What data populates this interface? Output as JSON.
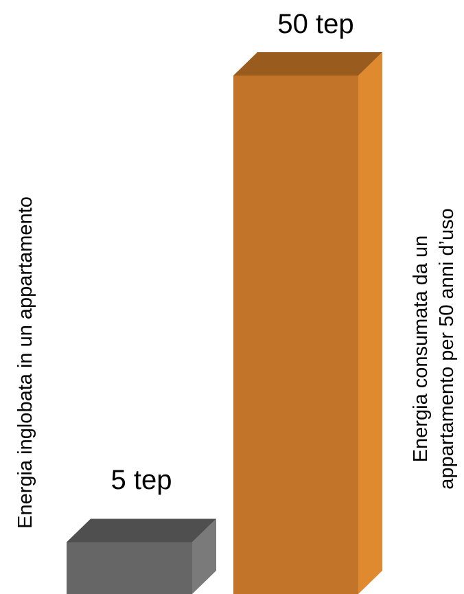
{
  "chart_data": {
    "type": "bar",
    "categories": [
      "Energia inglobata in un appartamento",
      "Energia consumata da un appartamento per 50 anni d’uso"
    ],
    "values": [
      5,
      50
    ],
    "unit": "tep",
    "data_labels": [
      "5 tep",
      "50 tep"
    ],
    "category_label_lines": [
      [
        "Energia inglobata in un appartamento"
      ],
      [
        "Energia consumata da un",
        "appartamento per 50 anni d’uso"
      ]
    ],
    "bar_style": "3d-box",
    "colors": {
      "bars": [
        {
          "front": "#666666",
          "top": "#4f4f4f",
          "side": "#7a7a7a"
        },
        {
          "front": "#c27428",
          "top": "#9a5b1f",
          "side": "#e08a30"
        }
      ]
    },
    "grid": false,
    "axes_visible": false,
    "ylim": [
      0,
      50
    ]
  }
}
